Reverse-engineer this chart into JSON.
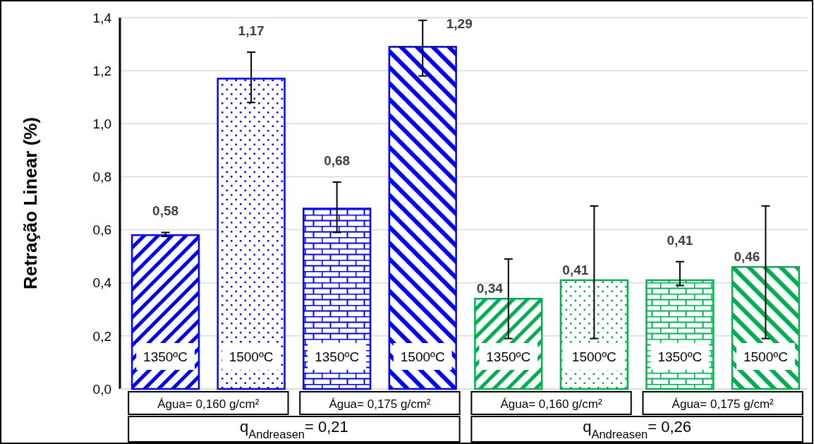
{
  "chart_data": {
    "type": "bar",
    "ylabel": "Retração Linear (%)",
    "categories": [
      "1350ºC",
      "1500ºC",
      "1350ºC",
      "1500ºC",
      "1350ºC",
      "1500ºC",
      "1350ºC",
      "1500ºC"
    ],
    "values": [
      0.58,
      1.17,
      0.68,
      1.29,
      0.34,
      0.41,
      0.41,
      0.46
    ],
    "value_labels": [
      "0,58",
      "1,17",
      "0,68",
      "1,29",
      "0,34",
      "0,41",
      "0,41",
      "0,46"
    ],
    "errors": [
      [
        0.575,
        0.59
      ],
      [
        1.08,
        1.27
      ],
      [
        0.59,
        0.78
      ],
      [
        1.18,
        1.39
      ],
      [
        0.19,
        0.49
      ],
      [
        0.19,
        0.69
      ],
      [
        0.39,
        0.48
      ],
      [
        0.19,
        0.69
      ]
    ],
    "colors": [
      "#0000ff",
      "#0000ff",
      "#0000ff",
      "#0000ff",
      "#00b050",
      "#00b050",
      "#00b050",
      "#00b050"
    ],
    "ylim": [
      0,
      1.4
    ],
    "yticks": [
      {
        "value": 0,
        "label": "0,0"
      },
      {
        "value": 0.2,
        "label": "0,2"
      },
      {
        "value": 0.4,
        "label": "0,4"
      },
      {
        "value": 0.6,
        "label": "0,6"
      },
      {
        "value": 0.8,
        "label": "0,8"
      },
      {
        "value": 1,
        "label": "1,0"
      },
      {
        "value": 1.2,
        "label": "1,2"
      },
      {
        "value": 1.4,
        "label": "1,4"
      }
    ],
    "grid": "y",
    "annotations": [
      "Água= 0,160 g/cm²",
      "Água= 0,175 g/cm²",
      "Água= 0,160 g/cm²",
      "Água= 0,175 g/cm²",
      "q$_{Andreasen}$= 0,21",
      "q$_{Andreasen}$= 0,26"
    ]
  }
}
